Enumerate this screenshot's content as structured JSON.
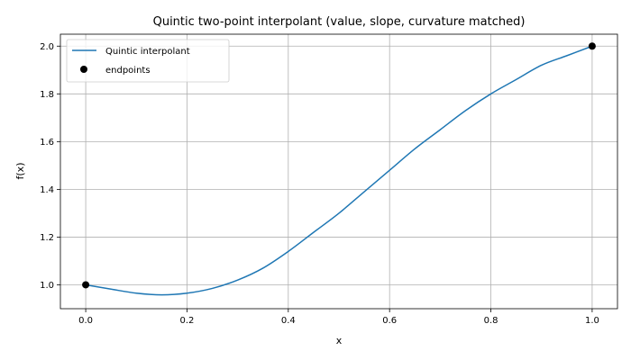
{
  "chart_data": {
    "type": "line",
    "title": "Quintic two-point interpolant (value, slope, curvature matched)",
    "xlabel": "x",
    "ylabel": "f(x)",
    "xlim": [
      -0.05,
      1.05
    ],
    "ylim": [
      0.9,
      2.05
    ],
    "xticks": [
      0.0,
      0.2,
      0.4,
      0.6,
      0.8,
      1.0
    ],
    "xtick_labels": [
      "0.0",
      "0.2",
      "0.4",
      "0.6",
      "0.8",
      "1.0"
    ],
    "yticks": [
      1.0,
      1.2,
      1.4,
      1.6,
      1.8,
      2.0
    ],
    "ytick_labels": [
      "1.0",
      "1.2",
      "1.4",
      "1.6",
      "1.8",
      "2.0"
    ],
    "grid": true,
    "legend_position": "upper-left",
    "series": [
      {
        "name": "Quintic interpolant",
        "kind": "line",
        "color": "#1f77b4",
        "x": [
          0.0,
          0.05,
          0.1,
          0.15,
          0.2,
          0.25,
          0.3,
          0.35,
          0.4,
          0.45,
          0.5,
          0.55,
          0.6,
          0.65,
          0.7,
          0.75,
          0.8,
          0.85,
          0.9,
          0.95,
          1.0
        ],
        "y": [
          1.0,
          0.982,
          0.965,
          0.958,
          0.965,
          0.985,
          1.02,
          1.07,
          1.14,
          1.22,
          1.3,
          1.39,
          1.48,
          1.57,
          1.65,
          1.73,
          1.8,
          1.86,
          1.92,
          1.96,
          2.0
        ]
      },
      {
        "name": "endpoints",
        "kind": "scatter",
        "color": "#000000",
        "x": [
          0.0,
          1.0
        ],
        "y": [
          1.0,
          2.0
        ]
      }
    ]
  }
}
